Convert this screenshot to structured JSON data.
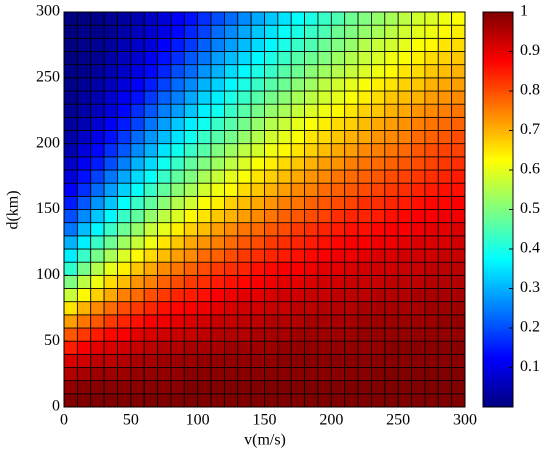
{
  "chart_data": {
    "type": "heatmap",
    "xlabel": "v(m/s)",
    "ylabel": "d(km)",
    "xlim": [
      0,
      300
    ],
    "ylim": [
      0,
      300
    ],
    "xticks": [
      0,
      50,
      100,
      150,
      200,
      250,
      300
    ],
    "yticks": [
      0,
      50,
      100,
      150,
      200,
      250,
      300
    ],
    "colormap": "jet",
    "clim": [
      0,
      1
    ],
    "cticks": [
      0.1,
      0.2,
      0.3,
      0.4,
      0.5,
      0.6,
      0.7,
      0.8,
      0.9,
      1
    ],
    "x": [
      5,
      15,
      25,
      35,
      45,
      55,
      65,
      75,
      85,
      95,
      105,
      115,
      125,
      135,
      145,
      155,
      165,
      175,
      185,
      195,
      205,
      215,
      225,
      235,
      245,
      255,
      265,
      275,
      285,
      295
    ],
    "y": [
      5,
      15,
      25,
      35,
      45,
      55,
      65,
      75,
      85,
      95,
      105,
      115,
      125,
      135,
      145,
      155,
      165,
      175,
      185,
      195,
      205,
      215,
      225,
      235,
      245,
      255,
      265,
      275,
      285,
      295
    ],
    "z": [
      [
        1,
        1,
        1,
        1,
        1,
        1,
        1,
        1,
        1,
        1,
        1,
        1,
        1,
        1,
        1,
        1,
        1,
        1,
        1,
        1,
        1,
        1,
        1,
        1,
        1,
        1,
        1,
        1,
        1,
        1
      ],
      [
        0.98,
        0.99,
        0.99,
        0.99,
        0.99,
        0.99,
        0.99,
        0.99,
        0.99,
        1,
        1,
        1,
        1,
        1,
        1,
        1,
        1,
        1,
        1,
        1,
        1,
        1,
        1,
        1,
        1,
        1,
        1,
        1,
        1,
        1
      ],
      [
        0.95,
        0.96,
        0.97,
        0.97,
        0.97,
        0.98,
        0.98,
        0.98,
        0.98,
        0.99,
        0.99,
        0.99,
        0.99,
        0.99,
        0.99,
        0.99,
        0.99,
        0.99,
        0.99,
        0.99,
        0.99,
        0.99,
        0.99,
        1,
        1,
        1,
        1,
        1,
        1,
        1
      ],
      [
        0.91,
        0.92,
        0.94,
        0.94,
        0.95,
        0.96,
        0.96,
        0.97,
        0.97,
        0.97,
        0.98,
        0.98,
        0.98,
        0.98,
        0.98,
        0.98,
        0.99,
        0.99,
        0.99,
        0.99,
        0.99,
        0.99,
        0.99,
        0.99,
        0.99,
        0.99,
        0.99,
        0.99,
        0.99,
        0.99
      ],
      [
        0.85,
        0.88,
        0.9,
        0.91,
        0.92,
        0.93,
        0.94,
        0.95,
        0.95,
        0.96,
        0.96,
        0.96,
        0.97,
        0.97,
        0.97,
        0.97,
        0.98,
        0.98,
        0.98,
        0.98,
        0.98,
        0.98,
        0.98,
        0.98,
        0.99,
        0.99,
        0.99,
        0.99,
        0.99,
        0.99
      ],
      [
        0.79,
        0.82,
        0.85,
        0.87,
        0.88,
        0.9,
        0.91,
        0.92,
        0.93,
        0.93,
        0.94,
        0.95,
        0.95,
        0.95,
        0.96,
        0.96,
        0.96,
        0.97,
        0.97,
        0.97,
        0.97,
        0.97,
        0.98,
        0.98,
        0.98,
        0.98,
        0.98,
        0.98,
        0.98,
        0.98
      ],
      [
        0.72,
        0.76,
        0.79,
        0.82,
        0.84,
        0.86,
        0.88,
        0.89,
        0.9,
        0.91,
        0.92,
        0.93,
        0.93,
        0.94,
        0.94,
        0.95,
        0.95,
        0.95,
        0.96,
        0.96,
        0.96,
        0.96,
        0.97,
        0.97,
        0.97,
        0.97,
        0.97,
        0.97,
        0.98,
        0.98
      ],
      [
        0.65,
        0.7,
        0.74,
        0.77,
        0.8,
        0.82,
        0.84,
        0.86,
        0.87,
        0.88,
        0.89,
        0.9,
        0.91,
        0.92,
        0.92,
        0.93,
        0.93,
        0.94,
        0.94,
        0.95,
        0.95,
        0.95,
        0.96,
        0.96,
        0.96,
        0.96,
        0.96,
        0.97,
        0.97,
        0.97
      ],
      [
        0.57,
        0.63,
        0.67,
        0.71,
        0.75,
        0.77,
        0.8,
        0.82,
        0.84,
        0.85,
        0.86,
        0.88,
        0.89,
        0.9,
        0.9,
        0.91,
        0.92,
        0.92,
        0.93,
        0.93,
        0.94,
        0.94,
        0.94,
        0.95,
        0.95,
        0.95,
        0.96,
        0.96,
        0.96,
        0.96
      ],
      [
        0.5,
        0.56,
        0.61,
        0.66,
        0.69,
        0.73,
        0.75,
        0.78,
        0.8,
        0.82,
        0.83,
        0.85,
        0.86,
        0.87,
        0.88,
        0.89,
        0.9,
        0.9,
        0.91,
        0.92,
        0.92,
        0.93,
        0.93,
        0.93,
        0.94,
        0.94,
        0.94,
        0.95,
        0.95,
        0.95
      ],
      [
        0.42,
        0.49,
        0.55,
        0.6,
        0.64,
        0.68,
        0.71,
        0.74,
        0.76,
        0.78,
        0.8,
        0.82,
        0.83,
        0.84,
        0.86,
        0.87,
        0.88,
        0.88,
        0.89,
        0.9,
        0.9,
        0.91,
        0.92,
        0.92,
        0.92,
        0.93,
        0.93,
        0.94,
        0.94,
        0.94
      ],
      [
        0.36,
        0.43,
        0.49,
        0.54,
        0.59,
        0.63,
        0.66,
        0.69,
        0.72,
        0.74,
        0.77,
        0.78,
        0.8,
        0.82,
        0.83,
        0.84,
        0.85,
        0.86,
        0.87,
        0.88,
        0.89,
        0.89,
        0.9,
        0.91,
        0.91,
        0.92,
        0.92,
        0.92,
        0.93,
        0.93
      ],
      [
        0.3,
        0.36,
        0.43,
        0.48,
        0.53,
        0.57,
        0.61,
        0.65,
        0.68,
        0.71,
        0.73,
        0.75,
        0.77,
        0.79,
        0.8,
        0.82,
        0.83,
        0.84,
        0.85,
        0.86,
        0.87,
        0.88,
        0.88,
        0.89,
        0.89,
        0.9,
        0.91,
        0.91,
        0.91,
        0.92
      ],
      [
        0.24,
        0.31,
        0.37,
        0.43,
        0.48,
        0.52,
        0.57,
        0.6,
        0.64,
        0.67,
        0.69,
        0.72,
        0.74,
        0.76,
        0.77,
        0.79,
        0.8,
        0.82,
        0.83,
        0.84,
        0.85,
        0.86,
        0.86,
        0.87,
        0.88,
        0.88,
        0.89,
        0.9,
        0.9,
        0.91
      ],
      [
        0.2,
        0.26,
        0.32,
        0.37,
        0.43,
        0.47,
        0.52,
        0.56,
        0.59,
        0.63,
        0.65,
        0.68,
        0.7,
        0.72,
        0.74,
        0.76,
        0.78,
        0.79,
        0.8,
        0.81,
        0.83,
        0.84,
        0.84,
        0.85,
        0.86,
        0.87,
        0.88,
        0.88,
        0.89,
        0.89
      ],
      [
        0.15,
        0.21,
        0.27,
        0.32,
        0.38,
        0.43,
        0.47,
        0.51,
        0.55,
        0.58,
        0.62,
        0.64,
        0.67,
        0.69,
        0.71,
        0.73,
        0.75,
        0.76,
        0.78,
        0.79,
        0.8,
        0.81,
        0.83,
        0.83,
        0.84,
        0.85,
        0.86,
        0.87,
        0.87,
        0.88
      ],
      [
        0.12,
        0.17,
        0.23,
        0.28,
        0.33,
        0.38,
        0.43,
        0.47,
        0.51,
        0.54,
        0.58,
        0.61,
        0.63,
        0.66,
        0.68,
        0.7,
        0.72,
        0.74,
        0.75,
        0.77,
        0.78,
        0.79,
        0.8,
        0.81,
        0.82,
        0.83,
        0.84,
        0.85,
        0.86,
        0.86
      ],
      [
        0.09,
        0.14,
        0.19,
        0.24,
        0.29,
        0.34,
        0.38,
        0.43,
        0.47,
        0.5,
        0.54,
        0.57,
        0.6,
        0.62,
        0.65,
        0.67,
        0.69,
        0.71,
        0.73,
        0.74,
        0.76,
        0.77,
        0.78,
        0.79,
        0.8,
        0.81,
        0.82,
        0.83,
        0.84,
        0.85
      ],
      [
        0.07,
        0.11,
        0.15,
        0.2,
        0.25,
        0.3,
        0.34,
        0.39,
        0.43,
        0.47,
        0.5,
        0.53,
        0.56,
        0.59,
        0.62,
        0.64,
        0.66,
        0.68,
        0.7,
        0.72,
        0.73,
        0.75,
        0.76,
        0.77,
        0.78,
        0.79,
        0.8,
        0.81,
        0.82,
        0.83
      ],
      [
        0.05,
        0.09,
        0.13,
        0.17,
        0.21,
        0.26,
        0.3,
        0.35,
        0.39,
        0.43,
        0.46,
        0.5,
        0.53,
        0.56,
        0.58,
        0.61,
        0.63,
        0.65,
        0.67,
        0.69,
        0.71,
        0.72,
        0.74,
        0.75,
        0.76,
        0.77,
        0.79,
        0.8,
        0.81,
        0.81
      ],
      [
        0.04,
        0.07,
        0.1,
        0.14,
        0.18,
        0.23,
        0.27,
        0.31,
        0.35,
        0.39,
        0.43,
        0.46,
        0.49,
        0.52,
        0.55,
        0.58,
        0.6,
        0.62,
        0.65,
        0.66,
        0.68,
        0.7,
        0.71,
        0.73,
        0.74,
        0.75,
        0.77,
        0.78,
        0.79,
        0.8
      ],
      [
        0.03,
        0.05,
        0.08,
        0.12,
        0.15,
        0.19,
        0.24,
        0.28,
        0.32,
        0.36,
        0.39,
        0.43,
        0.46,
        0.49,
        0.52,
        0.55,
        0.57,
        0.6,
        0.62,
        0.64,
        0.66,
        0.67,
        0.69,
        0.71,
        0.72,
        0.73,
        0.75,
        0.76,
        0.77,
        0.78
      ],
      [
        0.02,
        0.04,
        0.06,
        0.09,
        0.13,
        0.17,
        0.21,
        0.25,
        0.28,
        0.32,
        0.36,
        0.39,
        0.43,
        0.46,
        0.49,
        0.52,
        0.54,
        0.57,
        0.59,
        0.61,
        0.63,
        0.65,
        0.67,
        0.68,
        0.7,
        0.71,
        0.73,
        0.74,
        0.75,
        0.76
      ],
      [
        0.01,
        0.03,
        0.05,
        0.08,
        0.11,
        0.14,
        0.18,
        0.22,
        0.25,
        0.29,
        0.33,
        0.36,
        0.4,
        0.43,
        0.46,
        0.49,
        0.51,
        0.54,
        0.56,
        0.58,
        0.6,
        0.62,
        0.64,
        0.66,
        0.68,
        0.69,
        0.7,
        0.72,
        0.73,
        0.74
      ],
      [
        0.01,
        0.02,
        0.04,
        0.06,
        0.09,
        0.12,
        0.15,
        0.19,
        0.23,
        0.26,
        0.3,
        0.33,
        0.37,
        0.4,
        0.43,
        0.46,
        0.48,
        0.51,
        0.53,
        0.56,
        0.58,
        0.6,
        0.62,
        0.64,
        0.65,
        0.67,
        0.68,
        0.7,
        0.71,
        0.72
      ],
      [
        0.01,
        0.01,
        0.03,
        0.05,
        0.07,
        0.1,
        0.13,
        0.16,
        0.2,
        0.23,
        0.27,
        0.3,
        0.34,
        0.37,
        0.4,
        0.43,
        0.46,
        0.48,
        0.51,
        0.53,
        0.55,
        0.57,
        0.59,
        0.61,
        0.63,
        0.65,
        0.66,
        0.68,
        0.69,
        0.7
      ],
      [
        0,
        0.01,
        0.02,
        0.04,
        0.06,
        0.08,
        0.11,
        0.14,
        0.17,
        0.21,
        0.24,
        0.28,
        0.31,
        0.34,
        0.37,
        0.4,
        0.43,
        0.46,
        0.48,
        0.5,
        0.53,
        0.55,
        0.57,
        0.59,
        0.61,
        0.62,
        0.64,
        0.66,
        0.67,
        0.68
      ],
      [
        0,
        0.01,
        0.02,
        0.03,
        0.05,
        0.07,
        0.09,
        0.12,
        0.15,
        0.18,
        0.22,
        0.25,
        0.28,
        0.31,
        0.34,
        0.37,
        0.4,
        0.43,
        0.45,
        0.48,
        0.5,
        0.52,
        0.55,
        0.57,
        0.58,
        0.6,
        0.62,
        0.63,
        0.65,
        0.66
      ],
      [
        0,
        0.01,
        0.01,
        0.02,
        0.04,
        0.06,
        0.08,
        0.1,
        0.13,
        0.16,
        0.19,
        0.23,
        0.26,
        0.29,
        0.32,
        0.35,
        0.38,
        0.4,
        0.43,
        0.45,
        0.48,
        0.5,
        0.52,
        0.54,
        0.56,
        0.58,
        0.6,
        0.61,
        0.63,
        0.64
      ],
      [
        0,
        0,
        0.01,
        0.02,
        0.03,
        0.05,
        0.07,
        0.09,
        0.12,
        0.14,
        0.17,
        0.2,
        0.23,
        0.26,
        0.29,
        0.32,
        0.35,
        0.38,
        0.4,
        0.43,
        0.45,
        0.48,
        0.5,
        0.52,
        0.54,
        0.56,
        0.58,
        0.59,
        0.61,
        0.62
      ]
    ]
  }
}
